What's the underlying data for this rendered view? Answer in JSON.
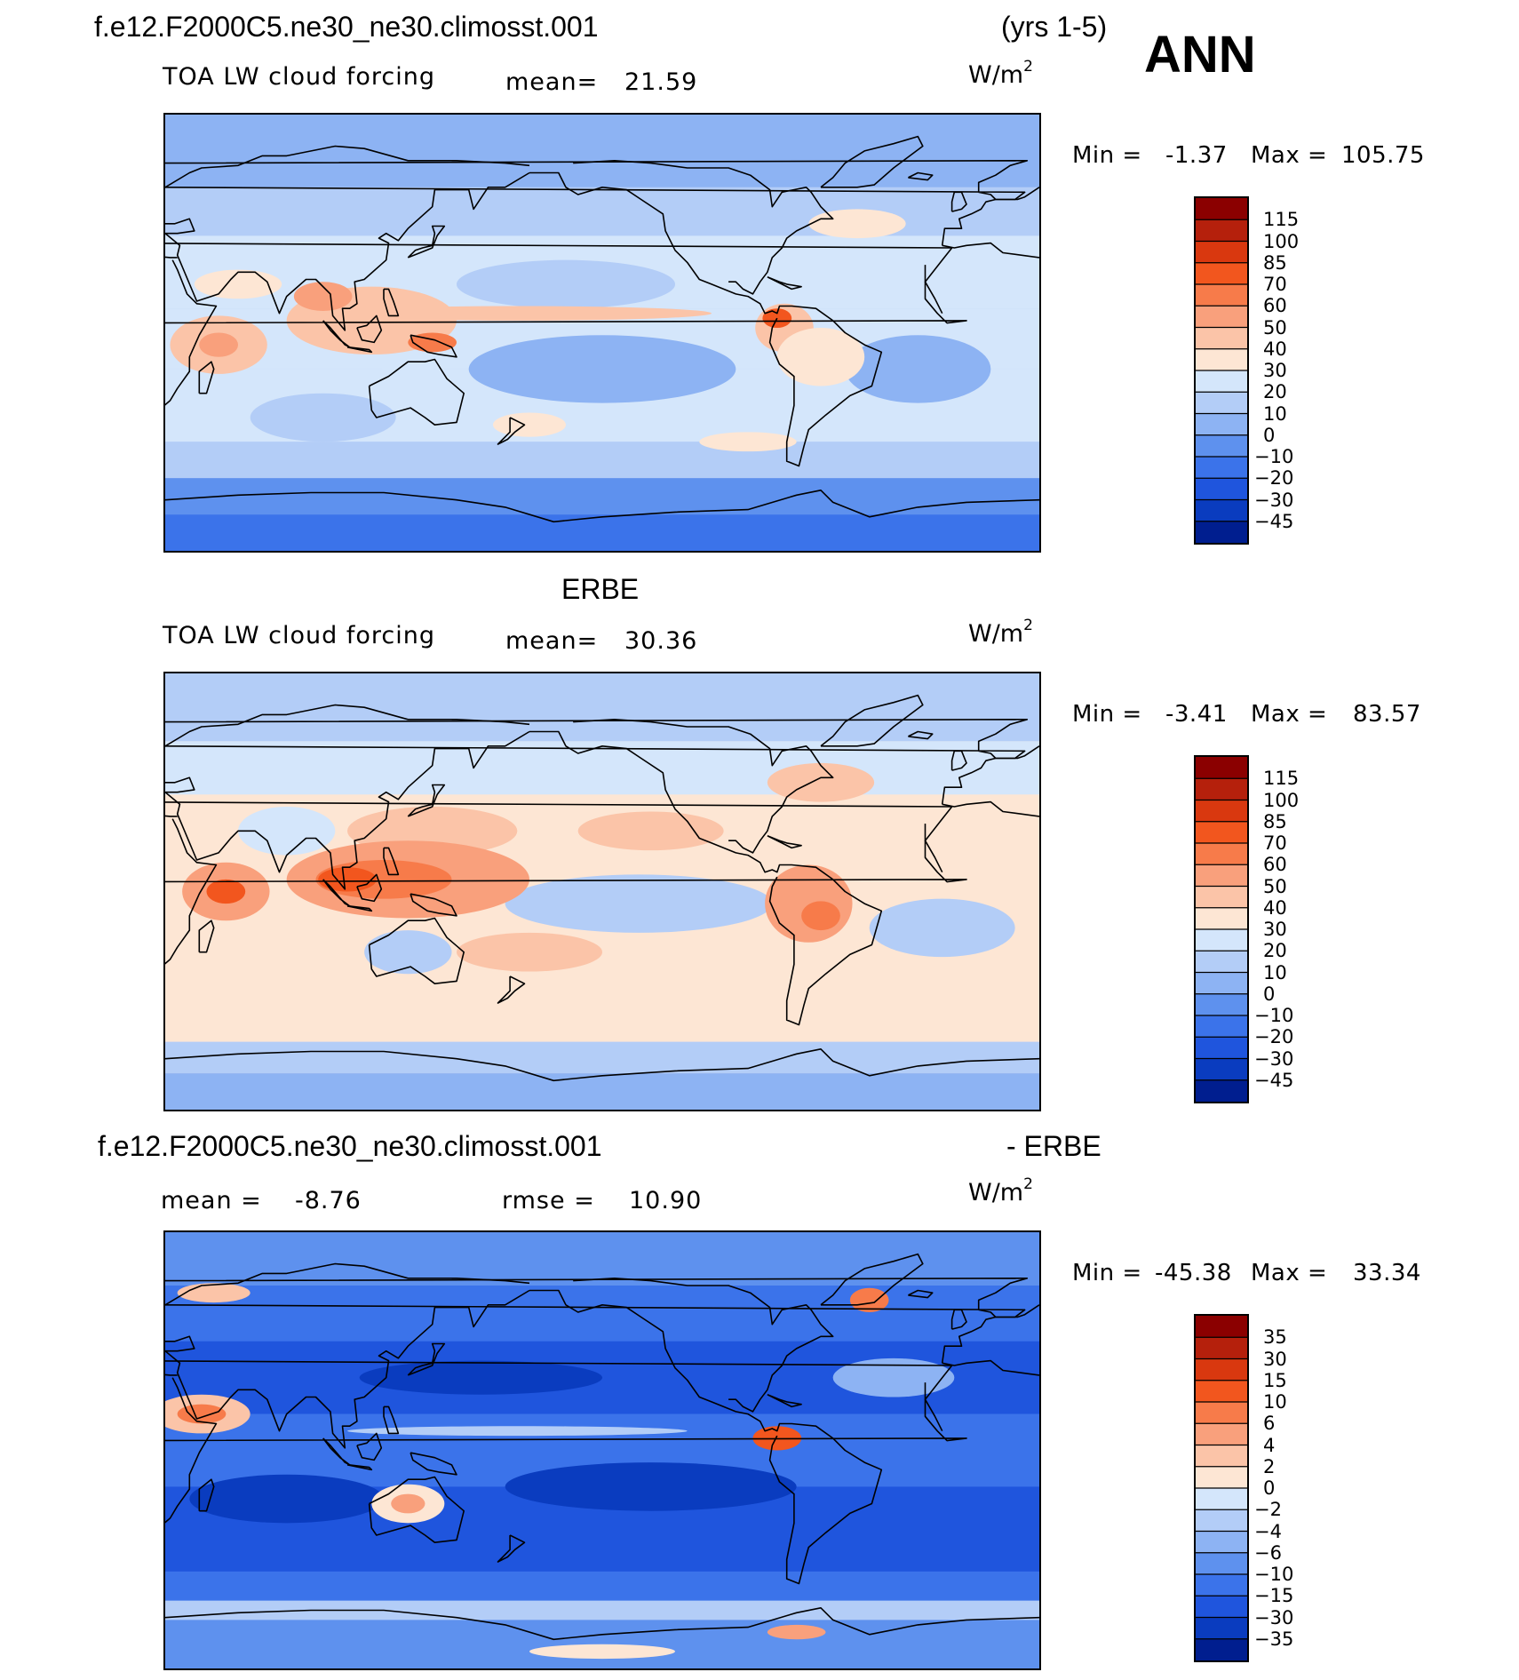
{
  "header": {
    "case_name": "f.e12.F2000C5.ne30_ne30.climosst.001",
    "years": "(yrs 1-5)",
    "season": "ANN"
  },
  "panels": [
    {
      "id": "model",
      "title": "",
      "variable": "TOA LW cloud forcing",
      "mean_label": "mean=",
      "mean_value": "21.59",
      "units_base": "W/m",
      "units_exp": "2",
      "min_label": "Min =",
      "min_value": "-1.37",
      "max_label": "Max =",
      "max_value": "105.75",
      "colorbar_labels": [
        "115",
        "100",
        "85",
        "70",
        "60",
        "50",
        "40",
        "30",
        "20",
        "10",
        "0",
        "−10",
        "−20",
        "−30",
        "−45"
      ]
    },
    {
      "id": "obs",
      "title": "ERBE",
      "variable": "TOA LW cloud forcing",
      "mean_label": "mean=",
      "mean_value": "30.36",
      "units_base": "W/m",
      "units_exp": "2",
      "min_label": "Min =",
      "min_value": "-3.41",
      "max_label": "Max =",
      "max_value": "83.57",
      "colorbar_labels": [
        "115",
        "100",
        "85",
        "70",
        "60",
        "50",
        "40",
        "30",
        "20",
        "10",
        "0",
        "−10",
        "−20",
        "−30",
        "−45"
      ]
    },
    {
      "id": "diff",
      "title_left": "f.e12.F2000C5.ne30_ne30.climosst.001",
      "title_right": "- ERBE",
      "mean_label": "mean =",
      "mean_value": "-8.76",
      "rmse_label": "rmse =",
      "rmse_value": "10.90",
      "units_base": "W/m",
      "units_exp": "2",
      "min_label": "Min =",
      "min_value": "-45.38",
      "max_label": "Max =",
      "max_value": "33.34",
      "colorbar_labels": [
        "35",
        "30",
        "15",
        "10",
        "6",
        "4",
        "2",
        "0",
        "−2",
        "−4",
        "−6",
        "−10",
        "−15",
        "−30",
        "−35"
      ]
    }
  ],
  "colors": {
    "abs_scale": [
      "#8b0000",
      "#b5200c",
      "#d9380f",
      "#f2561e",
      "#f77b4a",
      "#f9a07c",
      "#fbc4a8",
      "#fde6d4",
      "#d4e6fb",
      "#b3cdf7",
      "#8db3f3",
      "#5e91ee",
      "#3b73ea",
      "#1f55dd",
      "#0a3cbf",
      "#001e8f"
    ],
    "diff_scale": [
      "#8b0000",
      "#b5200c",
      "#d9380f",
      "#f2561e",
      "#f77b4a",
      "#f9a07c",
      "#fbc4a8",
      "#fde6d4",
      "#d4e6fb",
      "#b3cdf7",
      "#8db3f3",
      "#5e91ee",
      "#3b73ea",
      "#1f55dd",
      "#0a3cbf",
      "#001e8f"
    ],
    "coastline": "#000000"
  },
  "chart_data": [
    {
      "type": "heatmap",
      "title": "f.e12.F2000C5.ne30_ne30.climosst.001 (yrs 1-5) ANN",
      "subtitle": "TOA LW cloud forcing",
      "units": "W/m2",
      "mean": 21.59,
      "min": -1.37,
      "max": 105.75,
      "contour_levels": [
        -45,
        -30,
        -20,
        -10,
        0,
        10,
        20,
        30,
        40,
        50,
        60,
        70,
        85,
        100,
        115
      ]
    },
    {
      "type": "heatmap",
      "title": "ERBE",
      "subtitle": "TOA LW cloud forcing",
      "units": "W/m2",
      "mean": 30.36,
      "min": -3.41,
      "max": 83.57,
      "contour_levels": [
        -45,
        -30,
        -20,
        -10,
        0,
        10,
        20,
        30,
        40,
        50,
        60,
        70,
        85,
        100,
        115
      ]
    },
    {
      "type": "heatmap",
      "title": "f.e12.F2000C5.ne30_ne30.climosst.001 - ERBE",
      "units": "W/m2",
      "mean": -8.76,
      "rmse": 10.9,
      "min": -45.38,
      "max": 33.34,
      "contour_levels": [
        -35,
        -30,
        -15,
        -10,
        -6,
        -4,
        -2,
        0,
        2,
        4,
        6,
        10,
        15,
        30,
        35
      ]
    }
  ]
}
